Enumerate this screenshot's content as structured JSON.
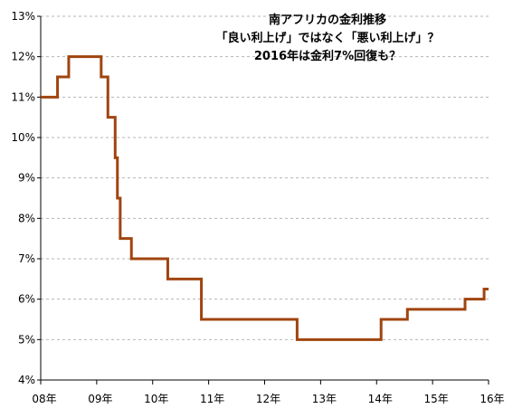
{
  "chart_data": {
    "type": "line",
    "title_lines": [
      "南アフリカの金利推移",
      "「良い利上げ」ではなく「悪い利上げ」？",
      "2016年は金利7%回復も？"
    ],
    "xlabel": "",
    "ylabel": "",
    "xlim": [
      2008.0,
      2016.0
    ],
    "ylim": [
      4,
      13
    ],
    "x_ticks": [
      {
        "value": 2008,
        "label": "08年"
      },
      {
        "value": 2009,
        "label": "09年"
      },
      {
        "value": 2010,
        "label": "10年"
      },
      {
        "value": 2011,
        "label": "11年"
      },
      {
        "value": 2012,
        "label": "12年"
      },
      {
        "value": 2013,
        "label": "13年"
      },
      {
        "value": 2014,
        "label": "14年"
      },
      {
        "value": 2015,
        "label": "15年"
      },
      {
        "value": 2016,
        "label": "16年"
      }
    ],
    "y_ticks": [
      {
        "value": 4,
        "label": "4%"
      },
      {
        "value": 5,
        "label": "5%"
      },
      {
        "value": 6,
        "label": "6%"
      },
      {
        "value": 7,
        "label": "7%"
      },
      {
        "value": 8,
        "label": "8%"
      },
      {
        "value": 9,
        "label": "9%"
      },
      {
        "value": 10,
        "label": "10%"
      },
      {
        "value": 11,
        "label": "11%"
      },
      {
        "value": 12,
        "label": "12%"
      },
      {
        "value": 13,
        "label": "13%"
      }
    ],
    "grid": "horizontal-dashed",
    "series": [
      {
        "color": "#a0440f",
        "step": true,
        "x": [
          2008.0,
          2008.3,
          2008.4,
          2008.5,
          2009.08,
          2009.2,
          2009.33,
          2009.37,
          2009.42,
          2009.45,
          2009.62,
          2010.27,
          2010.87,
          2012.58,
          2014.08,
          2014.55,
          2015.58,
          2015.92,
          2016.0
        ],
        "values": [
          11.0,
          11.5,
          11.5,
          12.0,
          11.5,
          10.5,
          9.5,
          8.5,
          7.5,
          7.5,
          7.0,
          6.5,
          5.5,
          5.0,
          5.5,
          5.75,
          6.0,
          6.25,
          6.25
        ]
      }
    ]
  }
}
